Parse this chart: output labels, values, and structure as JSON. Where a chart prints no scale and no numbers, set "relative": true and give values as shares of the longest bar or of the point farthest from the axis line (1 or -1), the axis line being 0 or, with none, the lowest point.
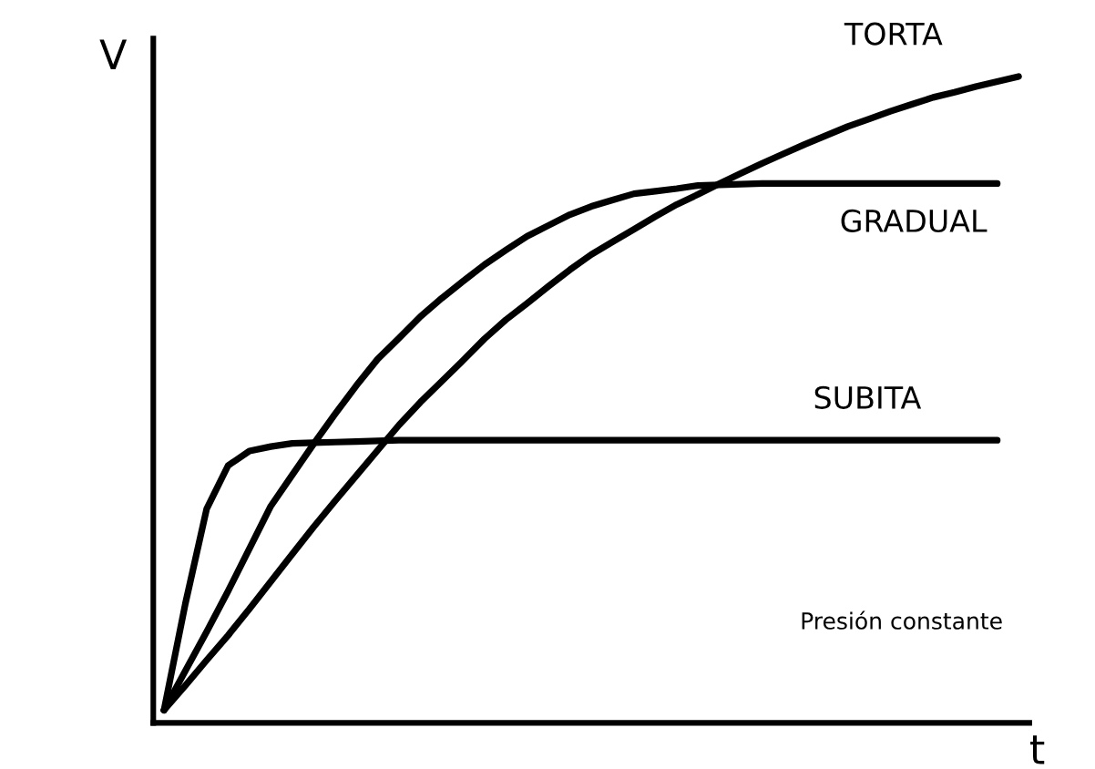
{
  "chart_data": {
    "type": "line",
    "relative": true,
    "xlabel": "t",
    "ylabel": "V",
    "annotations": [
      "Presión constante"
    ],
    "categories": [
      null,
      null,
      null,
      null,
      null,
      null,
      null,
      null,
      null,
      null,
      null,
      null,
      null,
      null,
      null,
      null,
      null,
      null,
      null,
      null,
      null,
      null,
      null,
      null,
      null,
      null,
      null,
      null,
      null,
      null,
      null,
      null,
      null,
      null,
      null,
      null,
      null,
      null,
      null,
      null,
      null
    ],
    "series": [
      {
        "name": "TORTA",
        "color": "#000000",
        "values": [
          0,
          0.039,
          0.079,
          0.118,
          0.16,
          0.203,
          0.246,
          0.289,
          0.33,
          0.37,
          0.41,
          0.45,
          0.486,
          0.519,
          0.552,
          0.586,
          0.616,
          0.642,
          0.669,
          0.695,
          0.719,
          0.739,
          0.759,
          0.779,
          0.798,
          0.814,
          0.831,
          0.847,
          0.863,
          0.878,
          0.893,
          0.907,
          0.921,
          0.933,
          0.945,
          0.956,
          0.967,
          0.975,
          0.984,
          0.992,
          1
        ]
      },
      {
        "name": "GRADUAL",
        "color": "#000000",
        "values": [
          0,
          0.062,
          0.124,
          0.188,
          0.255,
          0.322,
          0.371,
          0.42,
          0.467,
          0.512,
          0.554,
          0.587,
          0.621,
          0.65,
          0.677,
          0.703,
          0.726,
          0.748,
          0.765,
          0.782,
          0.795,
          0.805,
          0.815,
          0.819,
          0.823,
          0.828,
          0.829,
          0.83,
          0.831,
          0.831,
          0.831,
          0.831,
          0.831,
          0.831,
          0.831,
          0.831,
          0.831,
          0.831,
          0.831,
          0.831,
          null
        ]
      },
      {
        "name": "SUBITA",
        "color": "#000000",
        "values": [
          0,
          0.168,
          0.318,
          0.386,
          0.409,
          0.416,
          0.421,
          0.422,
          0.423,
          0.424,
          0.425,
          0.426,
          0.426,
          0.426,
          0.426,
          0.426,
          0.426,
          0.426,
          0.426,
          0.426,
          0.426,
          0.426,
          0.426,
          0.426,
          0.426,
          0.426,
          0.426,
          0.426,
          0.426,
          0.426,
          0.426,
          0.426,
          0.426,
          0.426,
          0.426,
          0.426,
          0.426,
          0.426,
          0.426,
          0.426,
          null
        ]
      }
    ]
  }
}
